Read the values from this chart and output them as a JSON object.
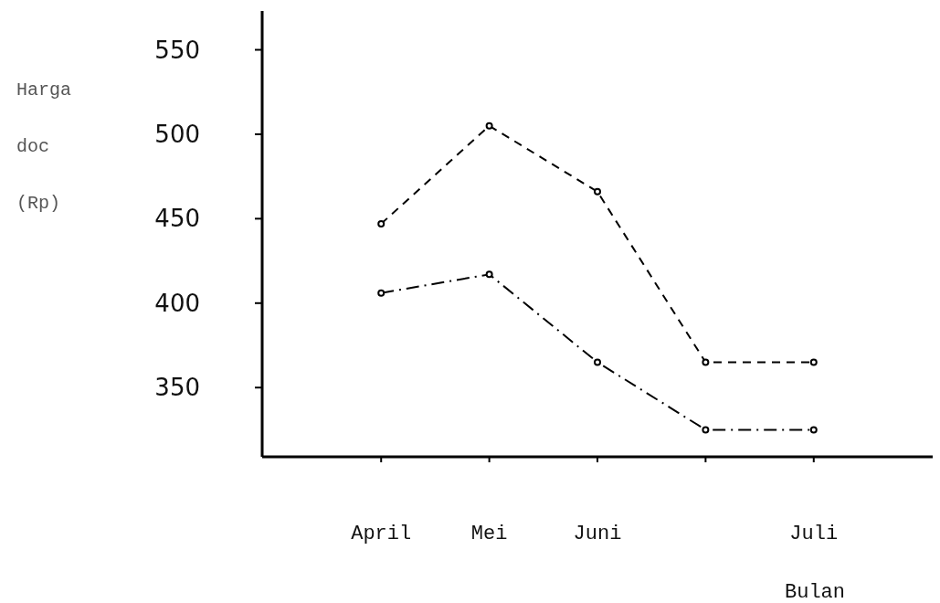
{
  "chart_data": {
    "type": "line",
    "xlabel": "Bulan",
    "ylabel": "Harga doc (Rp)",
    "categories": [
      "April",
      "Mei",
      "Juni",
      null,
      "Juli"
    ],
    "ylim": [
      309,
      573
    ],
    "yticks": [
      350,
      400,
      450,
      500,
      550
    ],
    "grid": false,
    "marker": "circle",
    "series": [
      {
        "color": "#000000",
        "line_style": "dashed",
        "values": [
          447,
          505,
          466,
          365,
          365
        ]
      },
      {
        "color": "#000000",
        "line_style": "dashdot",
        "values": [
          406,
          417,
          365,
          325,
          325
        ]
      }
    ]
  }
}
